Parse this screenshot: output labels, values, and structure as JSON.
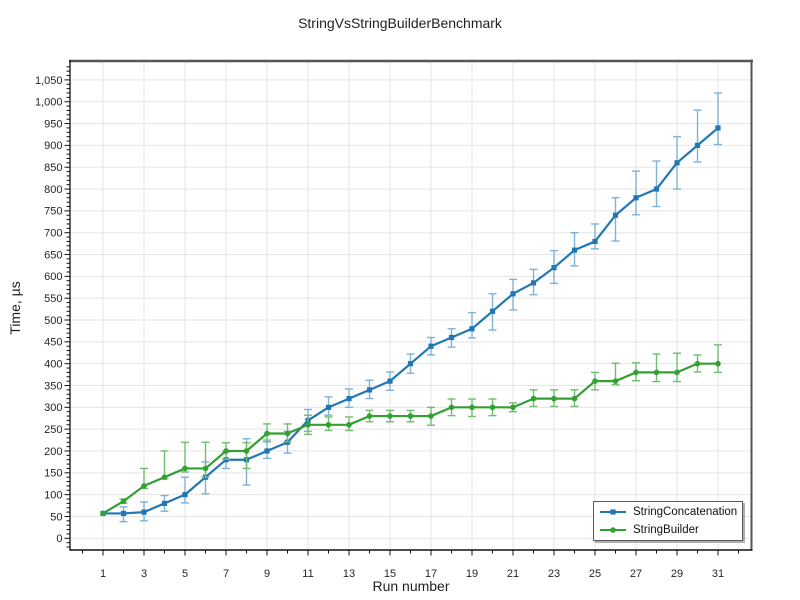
{
  "chart_data": {
    "type": "line",
    "title": "StringVsStringBuilderBenchmark",
    "xlabel": "Run number",
    "ylabel": "Time, µs",
    "grid": true,
    "grid_color": "#e5e5e5",
    "legend_position": "bottom-right",
    "x": [
      1,
      2,
      3,
      4,
      5,
      6,
      7,
      8,
      9,
      10,
      11,
      12,
      13,
      14,
      15,
      16,
      17,
      18,
      19,
      20,
      21,
      22,
      23,
      24,
      25,
      26,
      27,
      28,
      29,
      30,
      31
    ],
    "x_major_tick_labels": [
      "1",
      "3",
      "5",
      "7",
      "9",
      "11",
      "13",
      "15",
      "17",
      "19",
      "21",
      "23",
      "25",
      "27",
      "29",
      "31"
    ],
    "y_tick_labels": [
      "0",
      "50",
      "100",
      "150",
      "200",
      "250",
      "300",
      "350",
      "400",
      "450",
      "500",
      "550",
      "600",
      "650",
      "700",
      "750",
      "800",
      "850",
      "900",
      "950",
      "1,000",
      "1,050"
    ],
    "y_tick_step": 50,
    "ylim": [
      -27,
      1091
    ],
    "xlim": [
      -0.6,
      32.7
    ],
    "series": [
      {
        "name": "StringConcatenation",
        "color": "#2077b4",
        "error_color": "#7fb2d9",
        "marker": "square",
        "values": [
          57,
          57,
          60,
          80,
          100,
          140,
          180,
          180,
          200,
          220,
          270,
          300,
          320,
          340,
          360,
          400,
          440,
          460,
          480,
          520,
          560,
          585,
          620,
          660,
          680,
          740,
          780,
          800,
          860,
          900,
          940
        ],
        "err_low": [
          57,
          38,
          40,
          62,
          81,
          102,
          160,
          122,
          183,
          195,
          245,
          282,
          300,
          320,
          339,
          378,
          420,
          438,
          459,
          477,
          523,
          558,
          584,
          624,
          663,
          681,
          741,
          760,
          800,
          862,
          902
        ],
        "err_high": [
          57,
          72,
          83,
          98,
          140,
          175,
          198,
          228,
          225,
          245,
          295,
          324,
          342,
          362,
          381,
          422,
          460,
          480,
          517,
          560,
          593,
          616,
          659,
          700,
          720,
          780,
          841,
          864,
          920,
          981,
          1020
        ]
      },
      {
        "name": "StringBuilder",
        "color": "#33a033",
        "error_color": "#6fbe6f",
        "marker": "circle",
        "values": [
          57,
          85,
          120,
          140,
          160,
          160,
          200,
          200,
          240,
          240,
          260,
          260,
          260,
          280,
          280,
          280,
          280,
          300,
          300,
          300,
          300,
          320,
          320,
          320,
          360,
          360,
          380,
          380,
          380,
          400,
          400
        ],
        "err_low": [
          57,
          80,
          114,
          136,
          152,
          140,
          181,
          160,
          221,
          221,
          238,
          247,
          247,
          267,
          267,
          267,
          259,
          281,
          279,
          281,
          290,
          302,
          302,
          302,
          340,
          352,
          361,
          359,
          359,
          381,
          380
        ],
        "err_high": [
          57,
          90,
          160,
          200,
          220,
          220,
          219,
          219,
          262,
          262,
          282,
          278,
          278,
          293,
          293,
          293,
          300,
          319,
          319,
          319,
          310,
          340,
          340,
          340,
          380,
          401,
          402,
          422,
          424,
          420,
          443
        ]
      }
    ]
  }
}
